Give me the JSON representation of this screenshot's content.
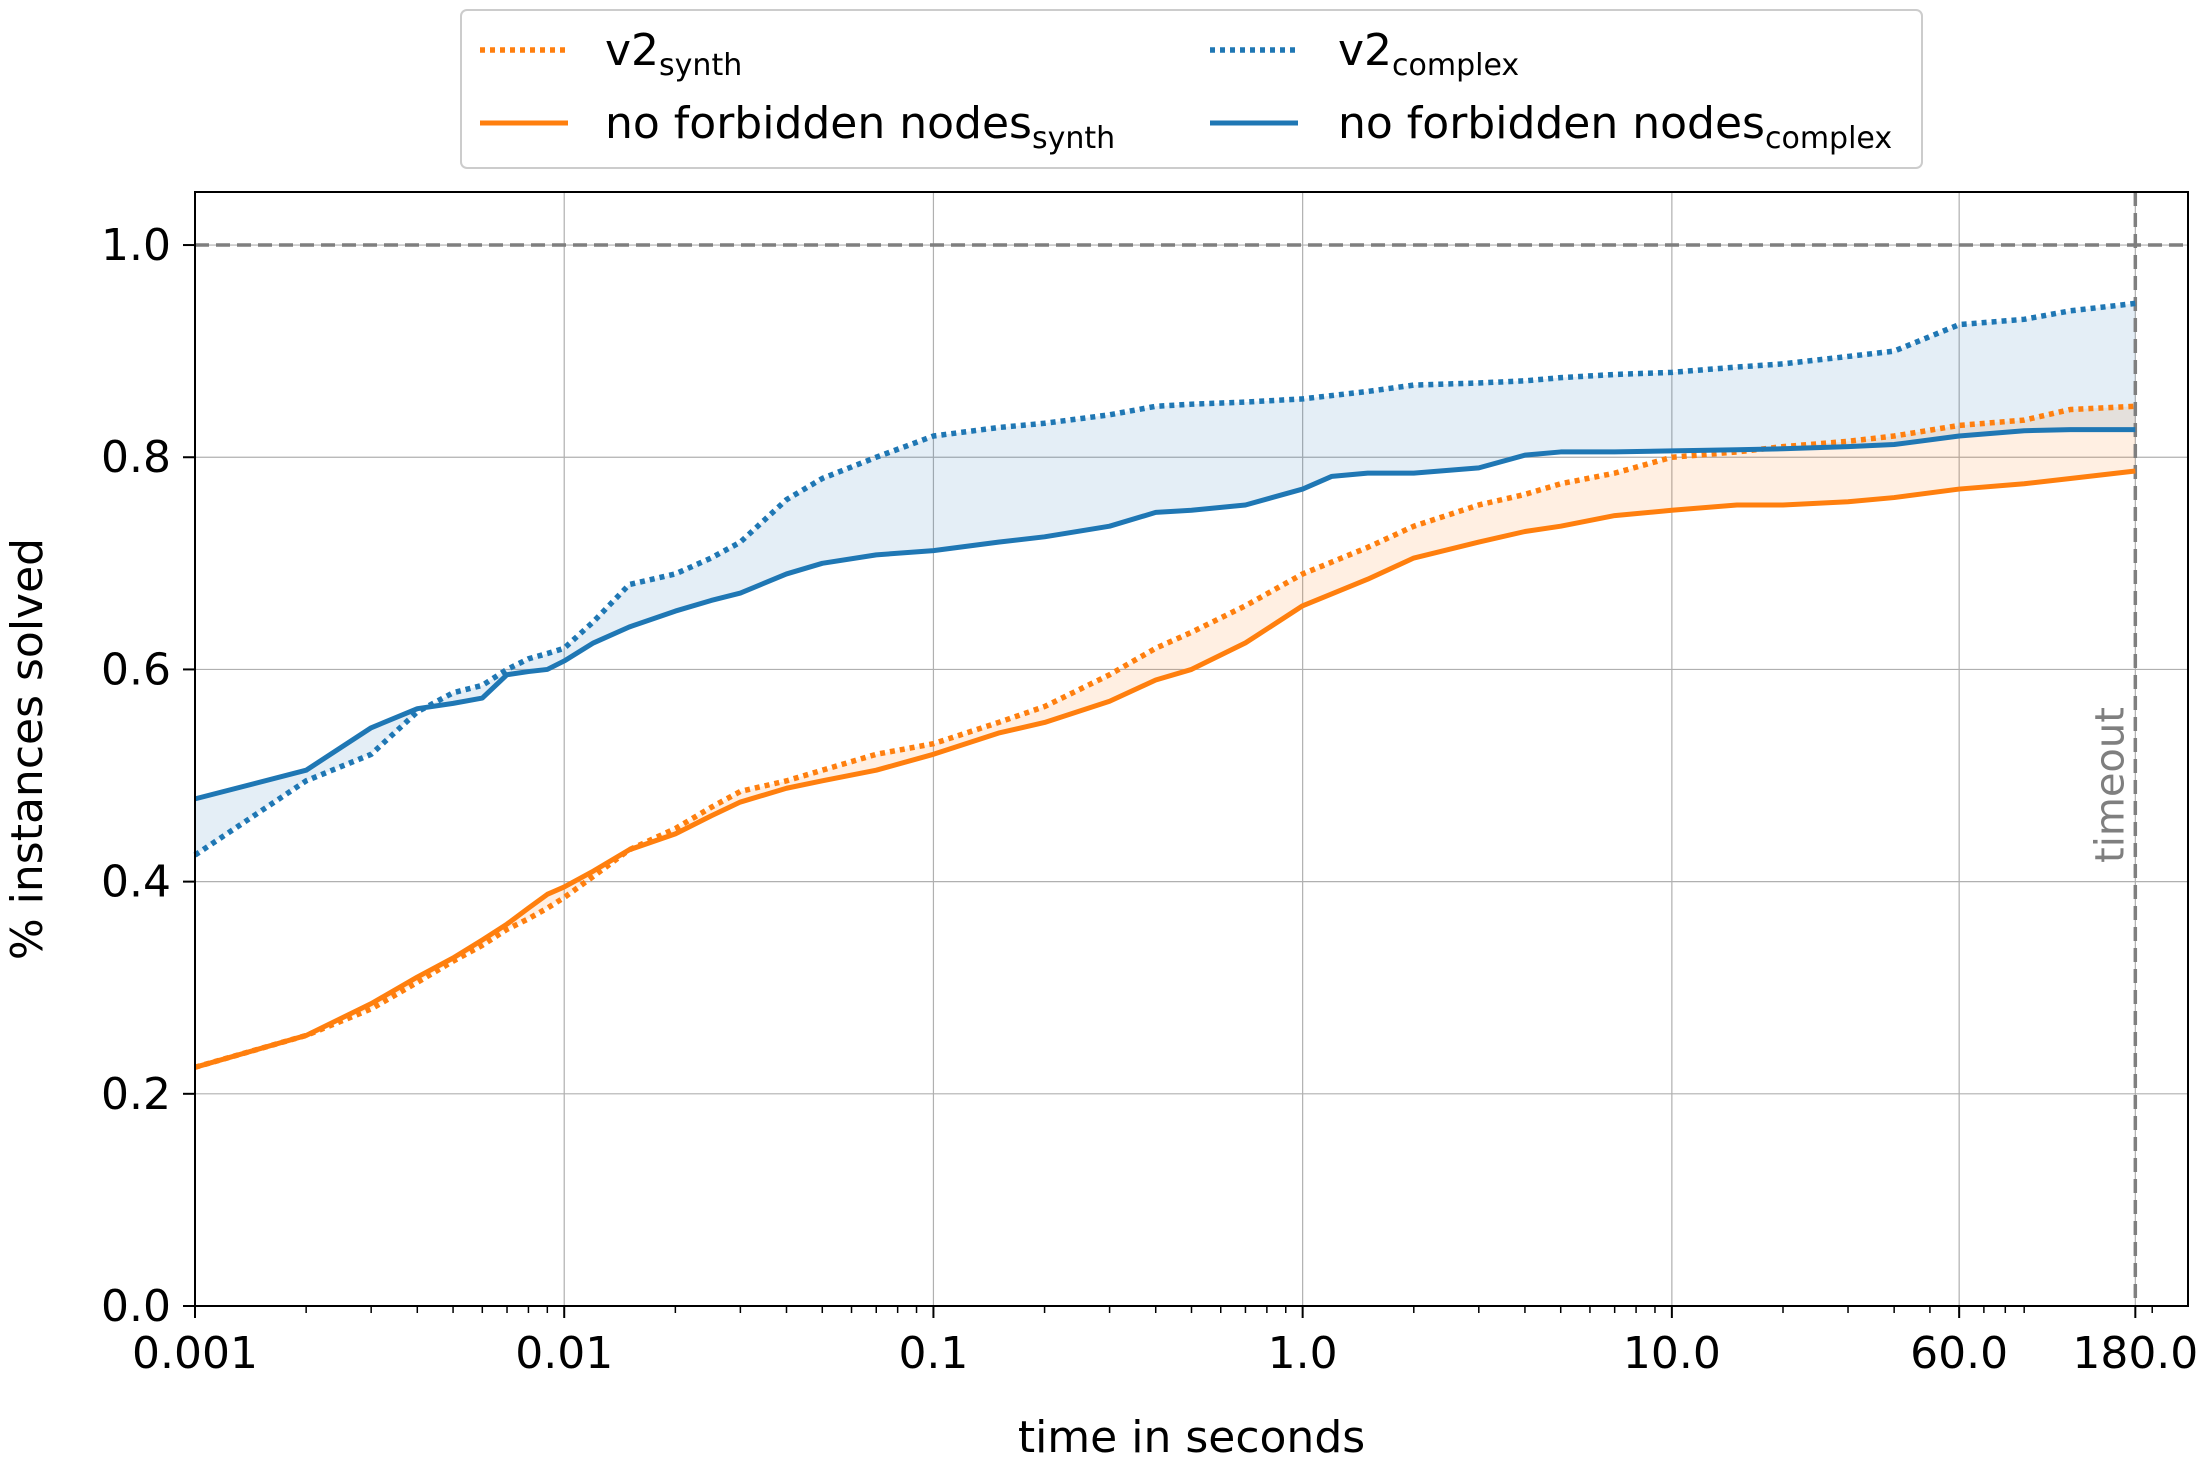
{
  "chart_data": {
    "type": "line",
    "xscale": "log",
    "xlabel": "time in seconds",
    "ylabel": "% instances solved",
    "xlim": [
      0.001,
      250
    ],
    "ylim": [
      0.0,
      1.05
    ],
    "x_ticks": [
      {
        "value": 0.001,
        "label": "0.001"
      },
      {
        "value": 0.01,
        "label": "0.01"
      },
      {
        "value": 0.1,
        "label": "0.1"
      },
      {
        "value": 1.0,
        "label": "1.0"
      },
      {
        "value": 10.0,
        "label": "10.0"
      },
      {
        "value": 60.0,
        "label": "60.0"
      },
      {
        "value": 180.0,
        "label": "180.0"
      }
    ],
    "y_ticks": [
      {
        "value": 0.0,
        "label": "0.0"
      },
      {
        "value": 0.2,
        "label": "0.2"
      },
      {
        "value": 0.4,
        "label": "0.4"
      },
      {
        "value": 0.6,
        "label": "0.6"
      },
      {
        "value": 0.8,
        "label": "0.8"
      },
      {
        "value": 1.0,
        "label": "1.0"
      }
    ],
    "grid": true,
    "legend_position": "top-center",
    "reference_lines": {
      "y": 1.0,
      "x": 180.0,
      "x_label": "timeout"
    },
    "colors": {
      "synth": "#ff7f0e",
      "complex": "#1f77b4",
      "reference": "#7f7f7f"
    },
    "series": [
      {
        "name": "v2",
        "name_sub": "synth",
        "style": "dotted",
        "color": "#ff7f0e",
        "x": [
          0.001,
          0.002,
          0.003,
          0.004,
          0.005,
          0.006,
          0.007,
          0.008,
          0.009,
          0.01,
          0.012,
          0.015,
          0.02,
          0.025,
          0.03,
          0.04,
          0.05,
          0.07,
          0.1,
          0.15,
          0.2,
          0.3,
          0.4,
          0.5,
          0.7,
          1.0,
          1.5,
          2.0,
          3.0,
          4.0,
          5.0,
          7.0,
          10.0,
          15.0,
          20.0,
          30.0,
          40.0,
          60.0,
          90.0,
          120.0,
          180.0
        ],
        "y": [
          0.225,
          0.255,
          0.28,
          0.305,
          0.325,
          0.34,
          0.355,
          0.365,
          0.375,
          0.385,
          0.405,
          0.43,
          0.45,
          0.47,
          0.485,
          0.495,
          0.505,
          0.52,
          0.53,
          0.55,
          0.565,
          0.595,
          0.62,
          0.635,
          0.66,
          0.69,
          0.715,
          0.735,
          0.755,
          0.765,
          0.775,
          0.785,
          0.8,
          0.805,
          0.81,
          0.815,
          0.82,
          0.83,
          0.835,
          0.845,
          0.848
        ]
      },
      {
        "name": "no forbidden nodes",
        "name_sub": "synth",
        "style": "solid",
        "color": "#ff7f0e",
        "x": [
          0.001,
          0.002,
          0.003,
          0.004,
          0.005,
          0.006,
          0.007,
          0.008,
          0.009,
          0.01,
          0.012,
          0.015,
          0.02,
          0.025,
          0.03,
          0.04,
          0.05,
          0.07,
          0.1,
          0.15,
          0.2,
          0.3,
          0.4,
          0.5,
          0.7,
          1.0,
          1.5,
          2.0,
          3.0,
          4.0,
          5.0,
          7.0,
          10.0,
          15.0,
          20.0,
          30.0,
          40.0,
          60.0,
          90.0,
          120.0,
          180.0
        ],
        "y": [
          0.225,
          0.255,
          0.285,
          0.31,
          0.328,
          0.345,
          0.36,
          0.375,
          0.388,
          0.395,
          0.41,
          0.43,
          0.445,
          0.462,
          0.475,
          0.488,
          0.495,
          0.505,
          0.52,
          0.54,
          0.55,
          0.57,
          0.59,
          0.6,
          0.625,
          0.66,
          0.685,
          0.705,
          0.72,
          0.73,
          0.735,
          0.745,
          0.75,
          0.755,
          0.755,
          0.758,
          0.762,
          0.77,
          0.775,
          0.78,
          0.787
        ]
      },
      {
        "name": "v2",
        "name_sub": "complex",
        "style": "dotted",
        "color": "#1f77b4",
        "x": [
          0.001,
          0.002,
          0.003,
          0.004,
          0.005,
          0.006,
          0.007,
          0.008,
          0.009,
          0.01,
          0.012,
          0.015,
          0.02,
          0.025,
          0.03,
          0.04,
          0.05,
          0.07,
          0.1,
          0.15,
          0.2,
          0.3,
          0.4,
          0.5,
          0.7,
          1.0,
          1.5,
          2.0,
          3.0,
          4.0,
          5.0,
          7.0,
          10.0,
          15.0,
          20.0,
          30.0,
          40.0,
          60.0,
          90.0,
          120.0,
          180.0
        ],
        "y": [
          0.425,
          0.495,
          0.52,
          0.56,
          0.578,
          0.585,
          0.6,
          0.61,
          0.615,
          0.62,
          0.645,
          0.68,
          0.69,
          0.705,
          0.72,
          0.76,
          0.78,
          0.8,
          0.82,
          0.828,
          0.832,
          0.84,
          0.848,
          0.85,
          0.852,
          0.855,
          0.862,
          0.868,
          0.87,
          0.872,
          0.875,
          0.878,
          0.88,
          0.885,
          0.888,
          0.895,
          0.9,
          0.925,
          0.93,
          0.938,
          0.945
        ]
      },
      {
        "name": "no forbidden nodes",
        "name_sub": "complex",
        "style": "solid",
        "color": "#1f77b4",
        "x": [
          0.001,
          0.002,
          0.003,
          0.004,
          0.005,
          0.006,
          0.007,
          0.008,
          0.009,
          0.01,
          0.012,
          0.015,
          0.02,
          0.025,
          0.03,
          0.04,
          0.05,
          0.07,
          0.1,
          0.15,
          0.2,
          0.3,
          0.4,
          0.5,
          0.7,
          1.0,
          1.2,
          1.5,
          2.0,
          3.0,
          4.0,
          5.0,
          7.0,
          10.0,
          15.0,
          20.0,
          30.0,
          40.0,
          60.0,
          90.0,
          120.0,
          180.0
        ],
        "y": [
          0.478,
          0.505,
          0.545,
          0.563,
          0.568,
          0.573,
          0.595,
          0.598,
          0.6,
          0.608,
          0.625,
          0.64,
          0.655,
          0.665,
          0.672,
          0.69,
          0.7,
          0.708,
          0.712,
          0.72,
          0.725,
          0.735,
          0.748,
          0.75,
          0.755,
          0.77,
          0.782,
          0.785,
          0.785,
          0.79,
          0.802,
          0.805,
          0.805,
          0.806,
          0.807,
          0.808,
          0.81,
          0.812,
          0.82,
          0.825,
          0.826,
          0.826
        ]
      }
    ],
    "fills": [
      {
        "between": [
          0,
          1
        ],
        "color": "#ff7f0e",
        "opacity": 0.12
      },
      {
        "between": [
          2,
          3
        ],
        "color": "#1f77b4",
        "opacity": 0.12
      }
    ]
  }
}
